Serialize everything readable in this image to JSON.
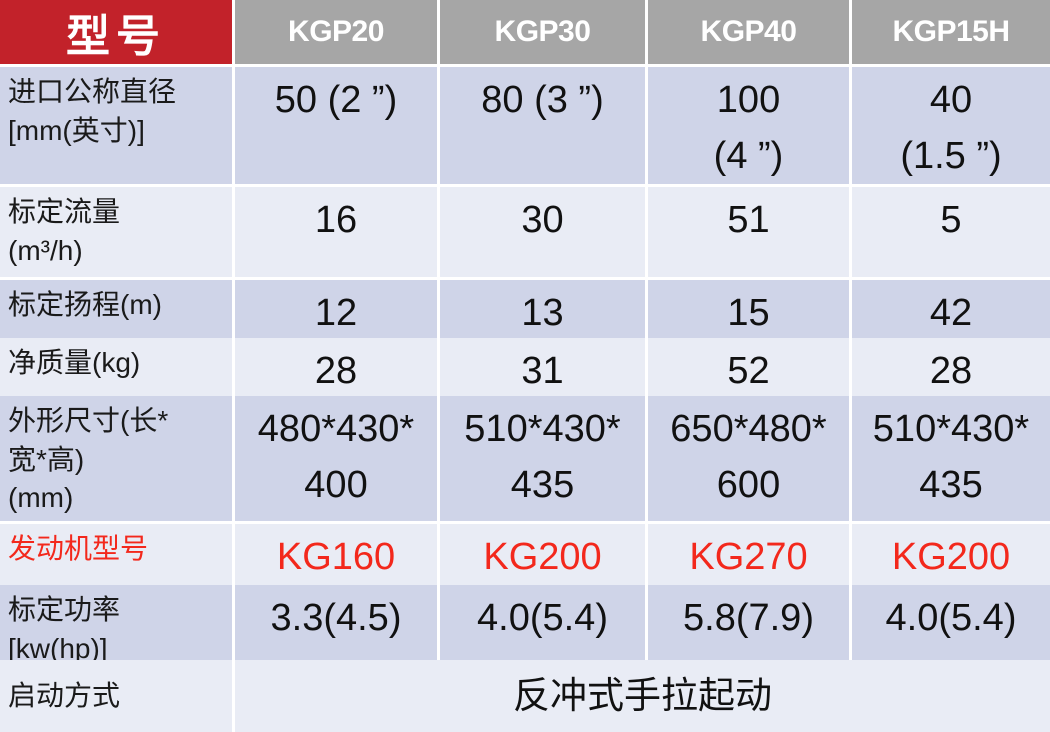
{
  "table": {
    "corner_label": "型号",
    "column_headers": [
      "KGP20",
      "KGP30",
      "KGP40",
      "KGP15H"
    ],
    "rows": [
      {
        "key": "inlet-diameter",
        "label": "进口公称直径\n[mm(英寸)]",
        "values": [
          "50 (2 ”)",
          "80 (3 ”)",
          "100\n(4 ”)",
          "40\n(1.5 ”)"
        ]
      },
      {
        "key": "rated-flow",
        "label": "标定流量\n(m³/h)",
        "values": [
          "16",
          "30",
          "51",
          "5"
        ]
      },
      {
        "key": "rated-head",
        "label": "标定扬程(m)",
        "values": [
          "12",
          "13",
          "15",
          "42"
        ]
      },
      {
        "key": "net-weight",
        "label": "净质量(kg)",
        "values": [
          "28",
          "31",
          "52",
          "28"
        ]
      },
      {
        "key": "dimensions",
        "label": "外形尺寸(长*\n宽*高)\n(mm)",
        "values": [
          "480*430*\n400",
          "510*430*\n435",
          "650*480*\n600",
          "510*430*\n435"
        ]
      },
      {
        "key": "engine-model",
        "label": "发动机型号",
        "values": [
          "KG160",
          "KG200",
          "KG270",
          "KG200"
        ]
      },
      {
        "key": "rated-power",
        "label": "标定功率\n[kw(hp)]",
        "values": [
          "3.3(4.5)",
          "4.0(5.4)",
          "5.8(7.9)",
          "4.0(5.4)"
        ]
      },
      {
        "key": "starting-method",
        "label": "启动方式",
        "values": [
          "反冲式手拉起动"
        ]
      }
    ],
    "colors": {
      "corner_bg": "#c2222a",
      "column_header_bg": "#a6a6a6",
      "band_dark": "#cfd4e8",
      "band_light": "#e9ecf5",
      "accent_text": "#f3281c",
      "header_text": "#ffffff",
      "body_text": "#111111"
    }
  }
}
